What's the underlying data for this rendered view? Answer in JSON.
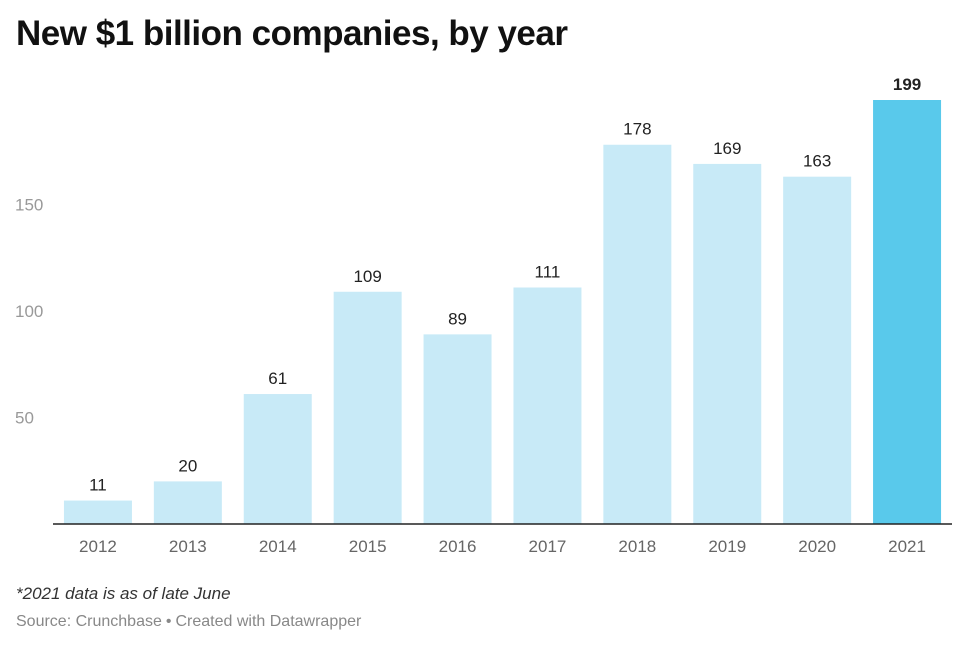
{
  "header": {
    "title": "New $1 billion companies, by year"
  },
  "footer": {
    "note": "*2021 data is as of late June",
    "source_label": "Source: Crunchbase",
    "separator": "•",
    "credit": "Created with Datawrapper"
  },
  "colors": {
    "bar_default": "#c8eaf7",
    "bar_highlight": "#59c9eb",
    "axis_tick_text": "#999999",
    "category_text": "#666666",
    "value_text": "#222222",
    "baseline": "#222222"
  },
  "chart_data": {
    "type": "bar",
    "title": "New $1 billion companies, by year",
    "categories": [
      "2012",
      "2013",
      "2014",
      "2015",
      "2016",
      "2017",
      "2018",
      "2019",
      "2020",
      "2021"
    ],
    "values": [
      11,
      20,
      61,
      109,
      89,
      111,
      178,
      169,
      163,
      199
    ],
    "highlight_index": 9,
    "yticks": [
      50,
      100,
      150
    ],
    "ylim": [
      0,
      199
    ],
    "grid": false,
    "xlabel": "",
    "ylabel": "",
    "data_labels": true
  }
}
